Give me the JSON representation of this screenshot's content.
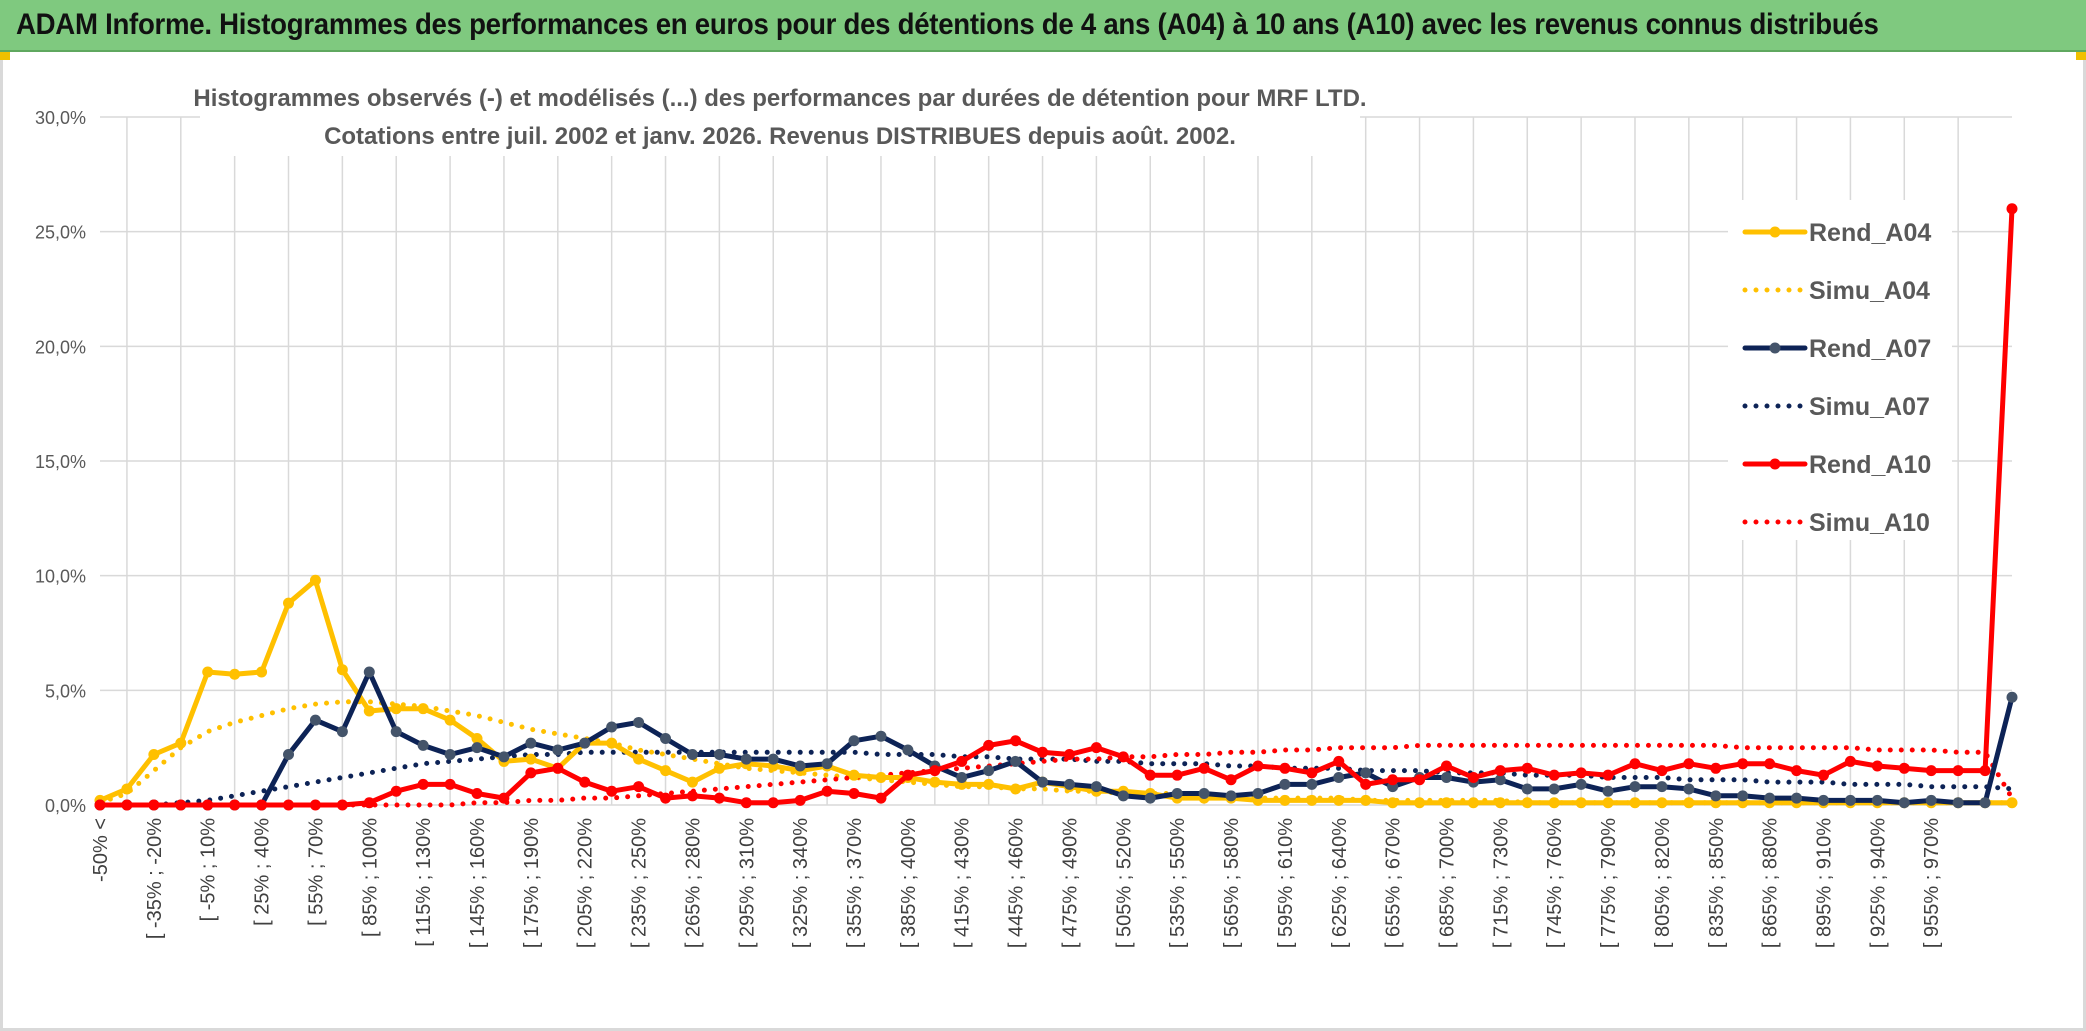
{
  "banner": {
    "title": "ADAM Informe. Histogrammes des performances en euros pour des détentions de 4 ans (A04) à 10 ans (A10) avec les revenus connus distribués"
  },
  "colors": {
    "banner_bg": "#7fc97f",
    "A04": "#ffc000",
    "A07": "#0d2356",
    "A10": "#ff0000",
    "grid": "#d9d9d9",
    "marker_A07": "#44546a"
  },
  "chart_data": {
    "type": "line",
    "title_line1": "Histogrammes observés (-) et modélisés (...) des performances par durées de détention pour MRF LTD.",
    "title_line2": "Cotations entre juil. 2002 et janv. 2026. Revenus DISTRIBUES depuis août. 2002.",
    "ylim": [
      0,
      30
    ],
    "y_ticks": [
      0,
      5,
      10,
      15,
      20,
      25,
      30
    ],
    "y_tick_labels": [
      "0,0%",
      "5,0%",
      "10,0%",
      "15,0%",
      "20,0%",
      "25,0%",
      "30,0%"
    ],
    "x_labels": [
      "-50% <",
      "[ -35% ; -20%",
      "[ -5% ; 10%",
      "[ 25% ; 40%",
      "[ 55% ; 70%",
      "[ 85% ; 100%",
      "[ 115% ; 130%",
      "[ 145% ; 160%",
      "[ 175% ; 190%",
      "[ 205% ; 220%",
      "[ 235% ; 250%",
      "[ 265% ; 280%",
      "[ 295% ; 310%",
      "[ 325% ; 340%",
      "[ 355% ; 370%",
      "[ 385% ; 400%",
      "[ 415% ; 430%",
      "[ 445% ; 460%",
      "[ 475% ; 490%",
      "[ 505% ; 520%",
      "[ 535% ; 550%",
      "[ 565% ; 580%",
      "[ 595% ; 610%",
      "[ 625% ; 640%",
      "[ 655% ; 670%",
      "[ 685% ; 700%",
      "[ 715% ; 730%",
      "[ 745% ; 760%",
      "[ 775% ; 790%",
      "[ 805% ; 820%",
      "[ 835% ; 850%",
      "[ 865% ; 880%",
      "[ 895% ; 910%",
      "[ 925% ; 940%",
      "[ 955% ; 970%"
    ],
    "n_points": 72,
    "legend_position": "top-right",
    "series": [
      {
        "name": "Rend_A04",
        "style": "solid",
        "markers": true,
        "values": [
          0.2,
          0.7,
          2.2,
          2.7,
          5.8,
          5.7,
          5.8,
          8.8,
          9.8,
          5.9,
          4.1,
          4.2,
          4.2,
          3.7,
          2.9,
          1.9,
          2.0,
          1.6,
          2.7,
          2.7,
          2.0,
          1.5,
          1.0,
          1.6,
          1.8,
          1.7,
          1.5,
          1.7,
          1.3,
          1.2,
          1.2,
          1.0,
          0.9,
          0.9,
          0.7,
          1.0,
          0.8,
          0.6,
          0.6,
          0.5,
          0.3,
          0.3,
          0.3,
          0.2,
          0.2,
          0.2,
          0.2,
          0.2,
          0.1,
          0.1,
          0.1,
          0.1,
          0.1,
          0.1,
          0.1,
          0.1,
          0.1,
          0.1,
          0.1,
          0.1,
          0.1,
          0.1,
          0.1,
          0.1,
          0.1,
          0.1,
          0.1,
          0.1,
          0.1,
          0.1,
          0.1,
          0.1
        ]
      },
      {
        "name": "Simu_A04",
        "style": "dotted",
        "markers": false,
        "values": [
          0.1,
          0.5,
          1.5,
          2.5,
          3.2,
          3.6,
          3.9,
          4.2,
          4.4,
          4.5,
          4.5,
          4.4,
          4.3,
          4.1,
          3.9,
          3.6,
          3.3,
          3.1,
          2.9,
          2.7,
          2.4,
          2.2,
          2.0,
          1.8,
          1.6,
          1.5,
          1.4,
          1.3,
          1.2,
          1.1,
          1.0,
          0.9,
          0.8,
          0.8,
          0.7,
          0.7,
          0.6,
          0.6,
          0.5,
          0.5,
          0.5,
          0.4,
          0.4,
          0.3,
          0.3,
          0.3,
          0.3,
          0.2,
          0.2,
          0.2,
          0.2,
          0.2,
          0.2,
          0.1,
          0.1,
          0.1,
          0.1,
          0.1,
          0.1,
          0.1,
          0.1,
          0.1,
          0.1,
          0.1,
          0.1,
          0.1,
          0.1,
          0.1,
          0.1,
          0.1,
          0.1,
          0.1
        ]
      },
      {
        "name": "Rend_A07",
        "style": "solid",
        "markers": true,
        "values": [
          0.0,
          0.0,
          0.0,
          0.0,
          0.0,
          0.0,
          0.0,
          2.2,
          3.7,
          3.2,
          5.8,
          3.2,
          2.6,
          2.2,
          2.5,
          2.1,
          2.7,
          2.4,
          2.7,
          3.4,
          3.6,
          2.9,
          2.2,
          2.2,
          2.0,
          2.0,
          1.7,
          1.8,
          2.8,
          3.0,
          2.4,
          1.7,
          1.2,
          1.5,
          1.9,
          1.0,
          0.9,
          0.8,
          0.4,
          0.3,
          0.5,
          0.5,
          0.4,
          0.5,
          0.9,
          0.9,
          1.2,
          1.4,
          0.8,
          1.2,
          1.2,
          1.0,
          1.1,
          0.7,
          0.7,
          0.9,
          0.6,
          0.8,
          0.8,
          0.7,
          0.4,
          0.4,
          0.3,
          0.3,
          0.2,
          0.2,
          0.2,
          0.1,
          0.2,
          0.1,
          0.1,
          4.7
        ]
      },
      {
        "name": "Simu_A07",
        "style": "dotted",
        "markers": false,
        "values": [
          0.0,
          0.0,
          0.0,
          0.1,
          0.2,
          0.4,
          0.6,
          0.8,
          1.0,
          1.2,
          1.4,
          1.6,
          1.8,
          1.9,
          2.0,
          2.1,
          2.2,
          2.2,
          2.3,
          2.3,
          2.3,
          2.3,
          2.3,
          2.3,
          2.3,
          2.3,
          2.3,
          2.3,
          2.3,
          2.2,
          2.2,
          2.2,
          2.1,
          2.1,
          2.0,
          2.0,
          2.0,
          1.9,
          1.9,
          1.8,
          1.8,
          1.8,
          1.7,
          1.7,
          1.6,
          1.6,
          1.6,
          1.5,
          1.5,
          1.5,
          1.4,
          1.4,
          1.4,
          1.3,
          1.3,
          1.3,
          1.2,
          1.2,
          1.2,
          1.1,
          1.1,
          1.1,
          1.0,
          1.0,
          1.0,
          0.9,
          0.9,
          0.9,
          0.8,
          0.8,
          0.8,
          0.7
        ]
      },
      {
        "name": "Rend_A10",
        "style": "solid",
        "markers": true,
        "values": [
          0.0,
          0.0,
          0.0,
          0.0,
          0.0,
          0.0,
          0.0,
          0.0,
          0.0,
          0.0,
          0.1,
          0.6,
          0.9,
          0.9,
          0.5,
          0.3,
          1.4,
          1.6,
          1.0,
          0.6,
          0.8,
          0.3,
          0.4,
          0.3,
          0.1,
          0.1,
          0.2,
          0.6,
          0.5,
          0.3,
          1.3,
          1.5,
          1.9,
          2.6,
          2.8,
          2.3,
          2.2,
          2.5,
          2.1,
          1.3,
          1.3,
          1.6,
          1.1,
          1.7,
          1.6,
          1.4,
          1.9,
          0.9,
          1.1,
          1.1,
          1.7,
          1.2,
          1.5,
          1.6,
          1.3,
          1.4,
          1.3,
          1.8,
          1.5,
          1.8,
          1.6,
          1.8,
          1.8,
          1.5,
          1.3,
          1.9,
          1.7,
          1.6,
          1.5,
          1.5,
          1.5,
          26.0
        ]
      },
      {
        "name": "Simu_A10",
        "style": "dotted",
        "markers": false,
        "values": [
          0.0,
          0.0,
          0.0,
          0.0,
          0.0,
          0.0,
          0.0,
          0.0,
          0.0,
          0.0,
          0.0,
          0.0,
          0.0,
          0.0,
          0.1,
          0.1,
          0.2,
          0.2,
          0.3,
          0.3,
          0.4,
          0.5,
          0.6,
          0.7,
          0.8,
          0.9,
          1.0,
          1.1,
          1.2,
          1.3,
          1.4,
          1.5,
          1.6,
          1.7,
          1.8,
          1.9,
          2.0,
          2.0,
          2.1,
          2.1,
          2.2,
          2.2,
          2.3,
          2.3,
          2.4,
          2.4,
          2.5,
          2.5,
          2.5,
          2.6,
          2.6,
          2.6,
          2.6,
          2.6,
          2.6,
          2.6,
          2.6,
          2.6,
          2.6,
          2.6,
          2.6,
          2.5,
          2.5,
          2.5,
          2.5,
          2.5,
          2.4,
          2.4,
          2.4,
          2.3,
          2.3,
          0.3
        ]
      }
    ]
  }
}
